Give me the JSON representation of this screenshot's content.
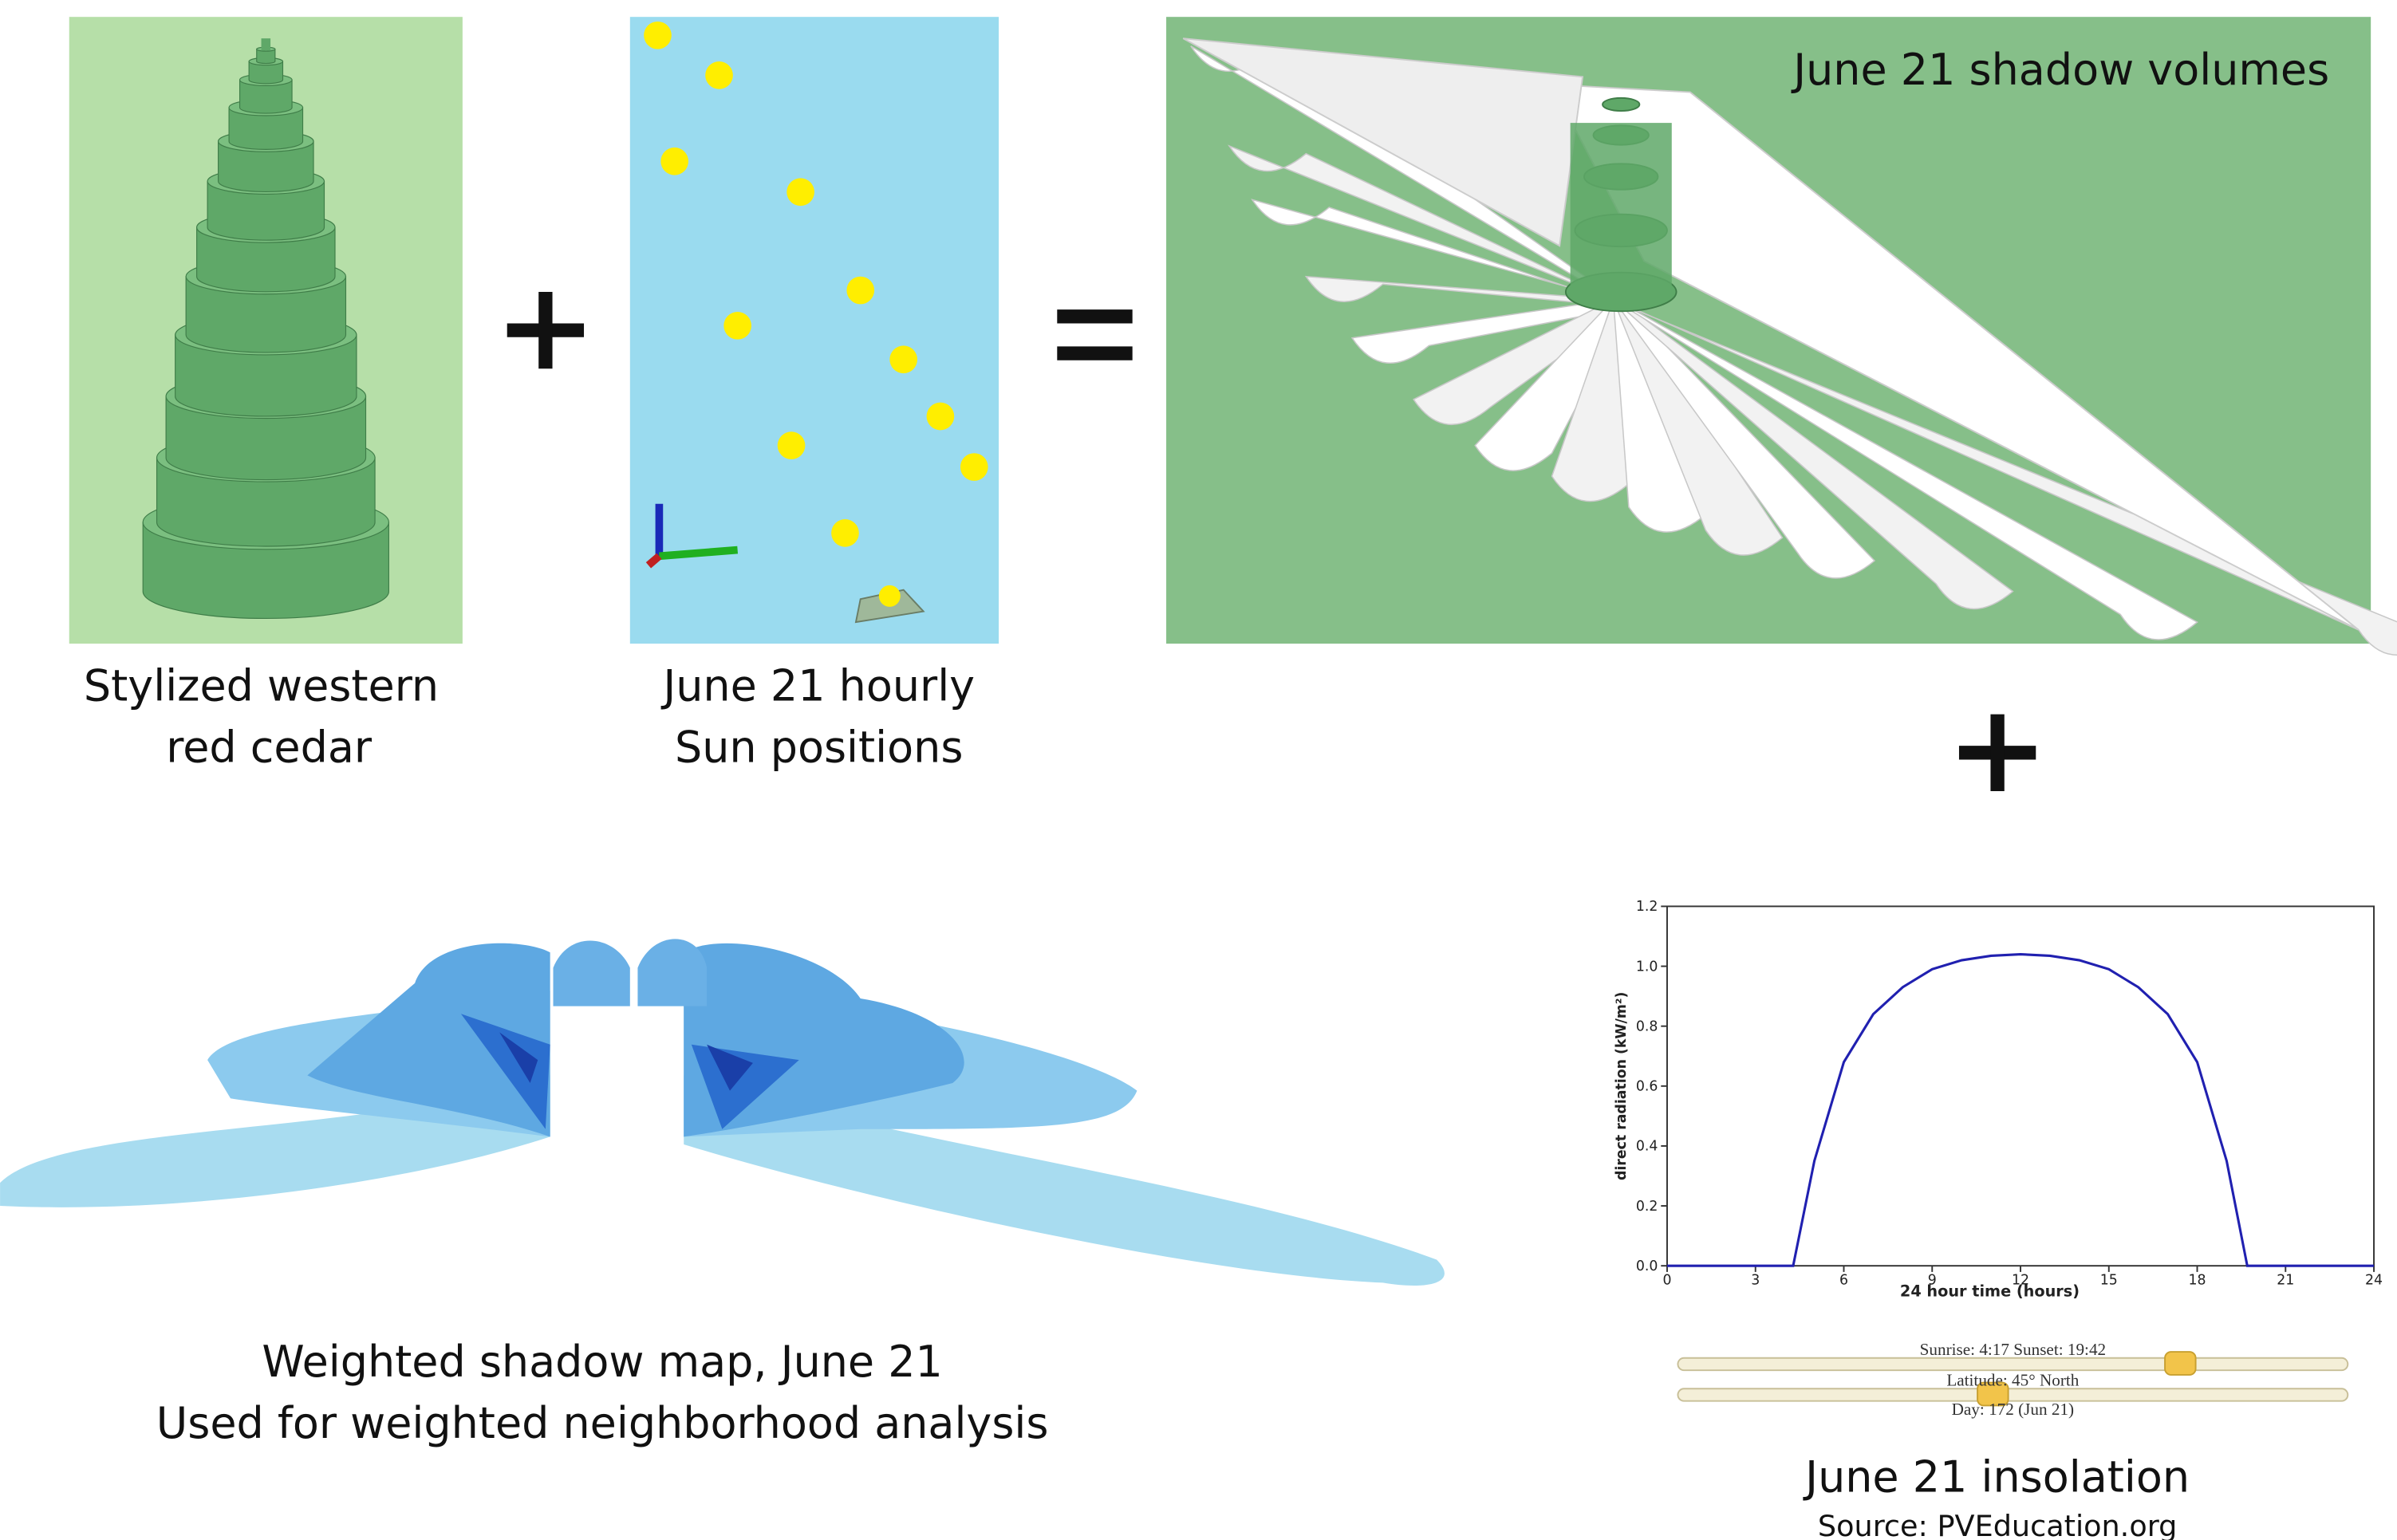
{
  "panels": {
    "tree_caption": [
      "Stylized western",
      "red cedar"
    ],
    "sun_caption": [
      "June 21 hourly",
      "Sun positions"
    ],
    "shadow_volumes_title": "June 21 shadow volumes",
    "shadow_map_caption": [
      "Weighted shadow map, June 21",
      "Used for weighted neighborhood analysis"
    ],
    "insolation_caption": "June 21 insolation",
    "insolation_source": "Source: PVEducation.org",
    "slider_labels": [
      "Sunrise: 4:17 Sunset: 19:42",
      "Latitude: 45° North",
      "Day: 172 (Jun 21)"
    ]
  },
  "insolation_chart": {
    "type": "line",
    "x_label": "24 hour time (hours)",
    "y_label": "direct radiation (kW/m²)",
    "x": [
      0,
      3,
      4.28,
      5,
      6,
      7,
      8,
      9,
      10,
      11,
      12,
      13,
      14,
      15,
      16,
      17,
      18,
      19,
      19.7,
      21,
      24
    ],
    "values": [
      0,
      0,
      0,
      0.35,
      0.68,
      0.84,
      0.93,
      0.99,
      1.02,
      1.035,
      1.04,
      1.035,
      1.02,
      0.99,
      0.93,
      0.84,
      0.68,
      0.35,
      0,
      0,
      0
    ],
    "color": "#2020b0",
    "xlim": [
      0,
      24
    ],
    "ylim": [
      0,
      1.2
    ],
    "xticks": [
      0,
      3,
      6,
      9,
      12,
      15,
      18,
      21,
      24
    ],
    "yticks": [
      {
        "value": 0,
        "label": "0.0"
      },
      0.2,
      0.4,
      0.6,
      0.8,
      {
        "value": 1,
        "label": "1.0"
      },
      {
        "value": 1.2,
        "label": "1.2"
      }
    ]
  }
}
